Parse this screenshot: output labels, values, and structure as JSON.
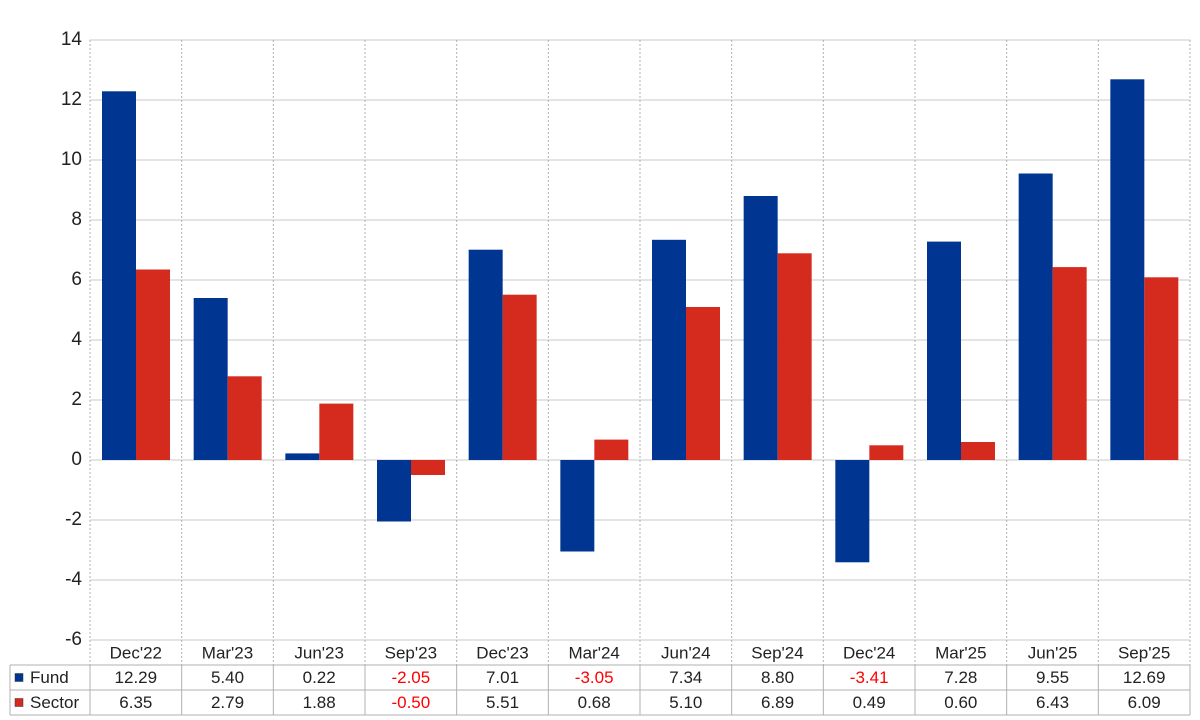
{
  "chart_data": {
    "type": "bar",
    "categories": [
      "Dec'22",
      "Mar'23",
      "Jun'23",
      "Sep'23",
      "Dec'23",
      "Mar'24",
      "Jun'24",
      "Sep'24",
      "Dec'24",
      "Mar'25",
      "Jun'25",
      "Sep'25"
    ],
    "series": [
      {
        "name": "Fund",
        "color": "#003591",
        "values": [
          12.29,
          5.4,
          0.22,
          -2.05,
          7.01,
          -3.05,
          7.34,
          8.8,
          -3.41,
          7.28,
          9.55,
          12.69
        ],
        "value_labels": [
          "12.29",
          "5.40",
          "0.22",
          "-2.05",
          "7.01",
          "-3.05",
          "7.34",
          "8.80",
          "-3.41",
          "7.28",
          "9.55",
          "12.69"
        ]
      },
      {
        "name": "Sector",
        "color": "#d52b1e",
        "values": [
          6.35,
          2.79,
          1.88,
          -0.5,
          5.51,
          0.68,
          5.1,
          6.89,
          0.49,
          0.6,
          6.43,
          6.09
        ],
        "value_labels": [
          "6.35",
          "2.79",
          "1.88",
          "-0.50",
          "5.51",
          "0.68",
          "5.10",
          "6.89",
          "0.49",
          "0.60",
          "6.43",
          "6.09"
        ]
      }
    ],
    "ylim": [
      -6,
      14
    ],
    "yticks": [
      -6,
      -4,
      -2,
      0,
      2,
      4,
      6,
      8,
      10,
      12,
      14
    ],
    "grid": true
  }
}
